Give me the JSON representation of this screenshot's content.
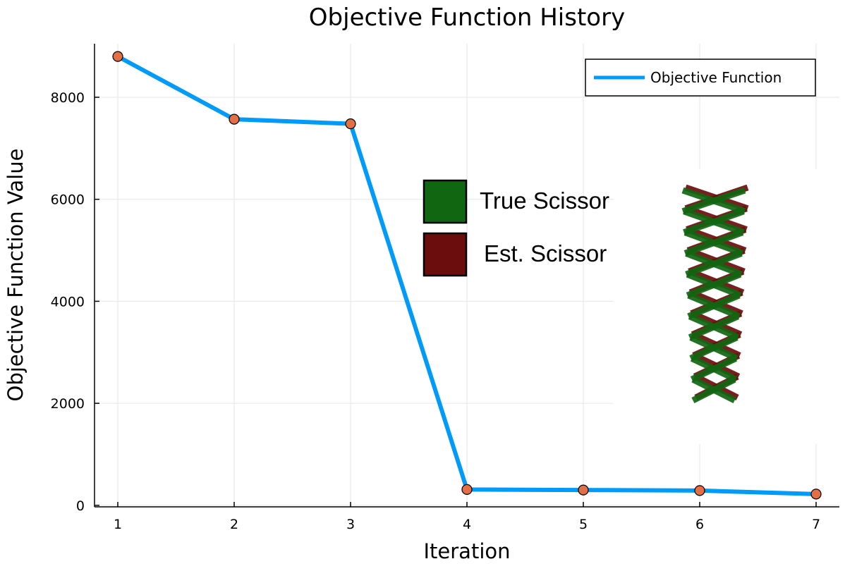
{
  "chart_data": {
    "type": "line",
    "title": "Objective Function History",
    "xlabel": "Iteration",
    "ylabel": "Objective Function Value",
    "x": [
      1,
      2,
      3,
      4,
      5,
      6,
      7
    ],
    "series": [
      {
        "name": "Objective Function",
        "values": [
          8800,
          7570,
          7480,
          310,
          300,
          290,
          220
        ],
        "line_color": "#009af9",
        "marker_color": "#e26f46"
      }
    ],
    "xlim": [
      0.8,
      7.2
    ],
    "ylim": [
      -30,
      9050
    ],
    "x_ticks": [
      "1",
      "2",
      "3",
      "4",
      "5",
      "6",
      "7"
    ],
    "y_ticks": [
      {
        "value": 0,
        "label": "0"
      },
      {
        "value": 2000,
        "label": "2000"
      },
      {
        "value": 4000,
        "label": "4000"
      },
      {
        "value": 6000,
        "label": "6000"
      },
      {
        "value": 8000,
        "label": "8000"
      }
    ],
    "grid": true,
    "legend_position": "top-right"
  },
  "inset": {
    "legend": [
      {
        "label": "True Scissor",
        "color": "#116611"
      },
      {
        "label": "Est. Scissor",
        "color": "#6b0d0d"
      }
    ]
  }
}
